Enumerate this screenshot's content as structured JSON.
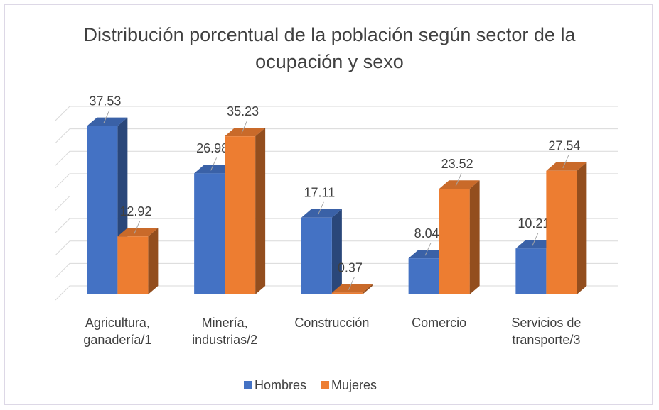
{
  "chart_data": {
    "type": "bar3d",
    "title": "Distribución porcentual de la población según sector de la ocupación y sexo",
    "categories": [
      "Agricultura, ganadería/1",
      "Minería, industrias/2",
      "Construcción",
      "Comercio",
      "Servicios de transporte/3"
    ],
    "series": [
      {
        "name": "Hombres",
        "color": "#4472c4",
        "values": [
          37.53,
          26.98,
          17.11,
          8.04,
          10.21
        ]
      },
      {
        "name": "Mujeres",
        "color": "#ed7d31",
        "values": [
          12.92,
          35.23,
          0.37,
          23.52,
          27.54
        ]
      }
    ],
    "ylim": [
      0,
      40
    ],
    "yticks": [
      0,
      5,
      10,
      15,
      20,
      25,
      30,
      35,
      40
    ],
    "grid": true,
    "legend": "bottom"
  }
}
